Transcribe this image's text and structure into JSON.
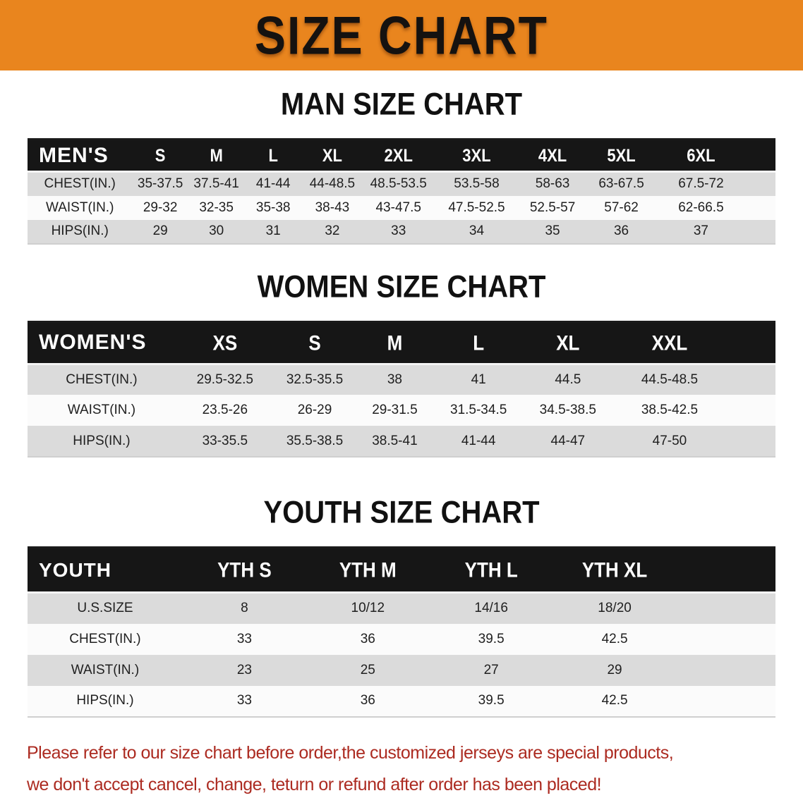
{
  "banner": {
    "title": "SIZE CHART",
    "bg_color": "#E9851E"
  },
  "sections": [
    {
      "id": "men",
      "title": "MAN SIZE CHART",
      "group_label": "MEN'S",
      "columns": [
        "S",
        "M",
        "L",
        "XL",
        "2XL",
        "3XL",
        "4XL",
        "5XL",
        "6XL"
      ],
      "rows": [
        {
          "label": "CHEST(IN.)",
          "values": [
            "35-37.5",
            "37.5-41",
            "41-44",
            "44-48.5",
            "48.5-53.5",
            "53.5-58",
            "58-63",
            "63-67.5",
            "67.5-72"
          ]
        },
        {
          "label": "WAIST(IN.)",
          "values": [
            "29-32",
            "32-35",
            "35-38",
            "38-43",
            "43-47.5",
            "47.5-52.5",
            "52.5-57",
            "57-62",
            "62-66.5"
          ]
        },
        {
          "label": "HIPS(IN.)",
          "values": [
            "29",
            "30",
            "31",
            "32",
            "33",
            "34",
            "35",
            "36",
            "37"
          ]
        }
      ]
    },
    {
      "id": "women",
      "title": "WOMEN SIZE CHART",
      "group_label": "WOMEN'S",
      "columns": [
        "XS",
        "S",
        "M",
        "L",
        "XL",
        "XXL"
      ],
      "rows": [
        {
          "label": "CHEST(IN.)",
          "values": [
            "29.5-32.5",
            "32.5-35.5",
            "38",
            "41",
            "44.5",
            "44.5-48.5"
          ]
        },
        {
          "label": "WAIST(IN.)",
          "values": [
            "23.5-26",
            "26-29",
            "29-31.5",
            "31.5-34.5",
            "34.5-38.5",
            "38.5-42.5"
          ]
        },
        {
          "label": "HIPS(IN.)",
          "values": [
            "33-35.5",
            "35.5-38.5",
            "38.5-41",
            "41-44",
            "44-47",
            "47-50"
          ]
        }
      ]
    },
    {
      "id": "youth",
      "title": "YOUTH SIZE CHART",
      "group_label": "YOUTH",
      "columns": [
        "YTH S",
        "YTH M",
        "YTH L",
        "YTH XL"
      ],
      "rows": [
        {
          "label": "U.S.SIZE",
          "values": [
            "8",
            "10/12",
            "14/16",
            "18/20"
          ]
        },
        {
          "label": "CHEST(IN.)",
          "values": [
            "33",
            "36",
            "39.5",
            "42.5"
          ]
        },
        {
          "label": "WAIST(IN.)",
          "values": [
            "23",
            "25",
            "27",
            "29"
          ]
        },
        {
          "label": "HIPS(IN.)",
          "values": [
            "33",
            "36",
            "39.5",
            "42.5"
          ]
        }
      ]
    }
  ],
  "disclaimer": {
    "line1": "Please refer to our size chart before order,the customized jerseys are special products,",
    "line2": "we don't accept cancel, change, teturn or refund after order has been placed!",
    "color": "#AC2B21"
  }
}
